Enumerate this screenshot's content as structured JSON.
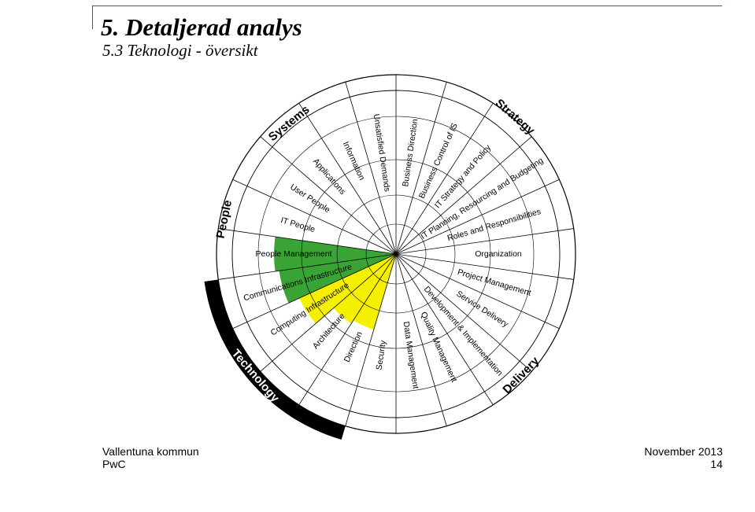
{
  "header": {
    "title": "5. Detaljerad analys",
    "subtitle": "5.3 Teknologi - översikt"
  },
  "diagram": {
    "domains": [
      {
        "name": "Strategy",
        "color": "#000000"
      },
      {
        "name": "Delivery",
        "color": "#000000"
      },
      {
        "name": "Technology",
        "color": "#000000"
      },
      {
        "name": "People",
        "color": "#000000"
      },
      {
        "name": "Systems",
        "color": "#000000"
      }
    ],
    "segments": [
      {
        "label": "Business Direction"
      },
      {
        "label": "Business Control of IS"
      },
      {
        "label": "IT Strategy and Policy"
      },
      {
        "label": "IT Planning, Resourcing and Budgeting"
      },
      {
        "label": "Roles and Responsibilities"
      },
      {
        "label": "Organization"
      },
      {
        "label": "Project Management"
      },
      {
        "label": "Service Delivery"
      },
      {
        "label": "Development & Implementation"
      },
      {
        "label": "Quality Management"
      },
      {
        "label": "Data Management"
      },
      {
        "label": "Security"
      },
      {
        "label": "Direction"
      },
      {
        "label": "Architecture"
      },
      {
        "label": "Computing Infrastructure"
      },
      {
        "label": "Communications Infrastructure"
      },
      {
        "label": "People Management"
      },
      {
        "label": "IT People"
      },
      {
        "label": "User People"
      },
      {
        "label": "Applications"
      },
      {
        "label": "Information"
      },
      {
        "label": "Unsatisfied Demands"
      }
    ],
    "highlight_colors": {
      "green": "#3aa335",
      "yellow": "#f5f000"
    }
  },
  "footer": {
    "organization": "Vallentuna kommun",
    "company": "PwC",
    "date": "November 2013",
    "page": "14"
  }
}
